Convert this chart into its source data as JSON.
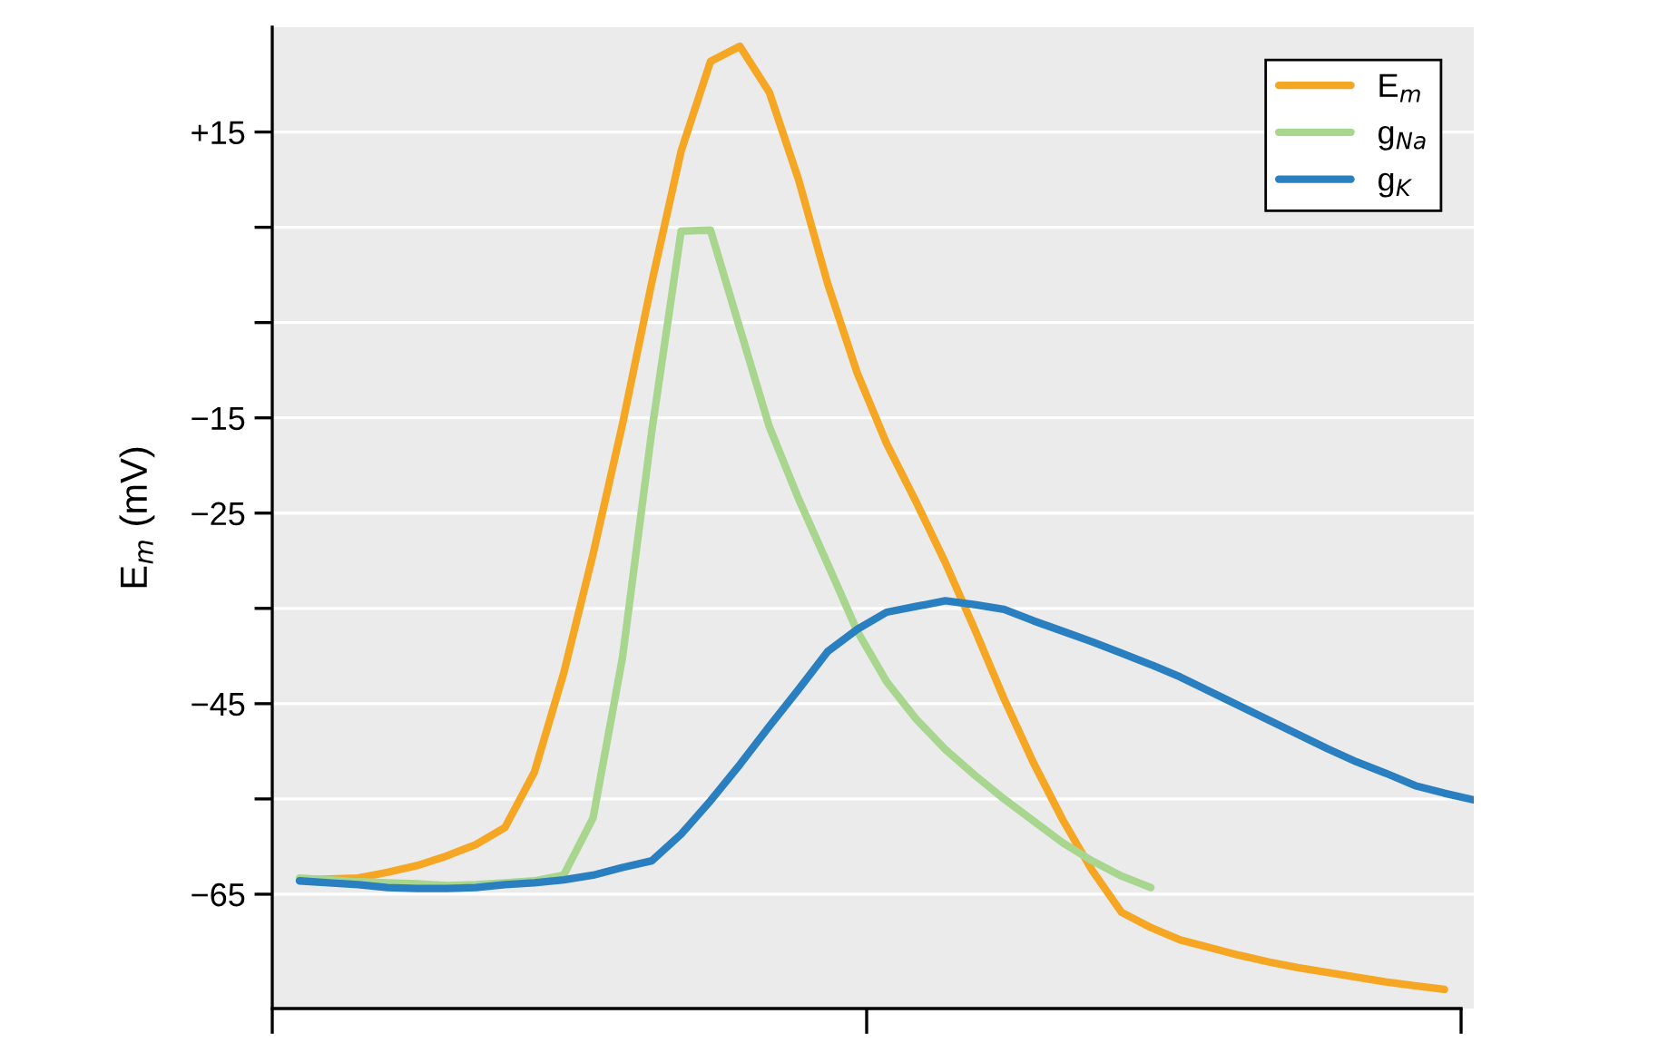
{
  "chart_data": {
    "type": "line",
    "ylabel": "E$_{m}$ (mV)",
    "categories": [
      null,
      null,
      null,
      null,
      null,
      null,
      null,
      null,
      null,
      null,
      null,
      null,
      null,
      null,
      null,
      null,
      null,
      null,
      null,
      null,
      null,
      null,
      null,
      null,
      null,
      null,
      null,
      null,
      null,
      null,
      null,
      null,
      null,
      null,
      null,
      null,
      null,
      null,
      null,
      null,
      null
    ],
    "ylim": [
      -77,
      26
    ],
    "yticks": [
      {
        "value": 15,
        "label": "+15"
      },
      {
        "value": 5,
        "label": null
      },
      {
        "value": -5,
        "label": null
      },
      {
        "value": -15,
        "label": "−15"
      },
      {
        "value": -25,
        "label": "−25"
      },
      {
        "value": -35,
        "label": null
      },
      {
        "value": -45,
        "label": "−45"
      },
      {
        "value": -55,
        "label": null
      },
      {
        "value": -65,
        "label": "−65"
      }
    ],
    "grid": "y",
    "legend": "top right",
    "marker": "none",
    "line_style": "solid",
    "series": [
      {
        "name": "E$_{m}$",
        "color": "#f5a623",
        "values": [
          -63.5,
          -63.4,
          -63.3,
          -62.7,
          -62.0,
          -61.0,
          -59.8,
          -58.0,
          -52.2,
          -41.8,
          -29.3,
          -15.7,
          -0.8,
          13.0,
          22.4,
          24.0,
          19.2,
          10.0,
          -1.0,
          -10.3,
          -17.7,
          -23.8,
          -30.2,
          -37.2,
          -44.5,
          -51.2,
          -57.2,
          -62.5,
          -66.9,
          -68.5,
          -69.8,
          -70.6,
          -71.4,
          -72.1,
          -72.7,
          -73.2,
          -73.7,
          -74.2,
          -74.6,
          -75.0,
          null
        ]
      },
      {
        "name": "g$_{Na}$",
        "color": "#a8d68e",
        "values": [
          -63.3,
          -63.5,
          -63.7,
          -63.8,
          -63.9,
          -64.1,
          -64.0,
          -63.8,
          -63.6,
          -63.0,
          -57.0,
          -40.2,
          -16.4,
          4.6,
          4.7,
          -5.6,
          -15.9,
          -23.5,
          -30.4,
          -37.4,
          -42.7,
          -46.6,
          -49.8,
          -52.5,
          -55.0,
          -57.3,
          -59.6,
          -61.5,
          -63.1,
          -64.3,
          null,
          null,
          null,
          null,
          null,
          null,
          null,
          null,
          null,
          null,
          null
        ]
      },
      {
        "name": "g$_{K}$",
        "color": "#2a7fc1",
        "values": [
          -63.6,
          -63.8,
          -64.0,
          -64.3,
          -64.4,
          -64.4,
          -64.3,
          -64.0,
          -63.8,
          -63.5,
          -63.0,
          -62.2,
          -61.5,
          -58.7,
          -55.2,
          -51.4,
          -47.4,
          -43.5,
          -39.5,
          -37.2,
          -35.4,
          -34.8,
          -34.2,
          -34.6,
          -35.1,
          -36.3,
          -37.4,
          -38.5,
          -39.7,
          -40.9,
          -42.2,
          -43.7,
          -45.2,
          -46.7,
          -48.2,
          -49.7,
          -51.1,
          -52.3,
          -53.6,
          -54.4,
          -55.1
        ]
      }
    ]
  }
}
